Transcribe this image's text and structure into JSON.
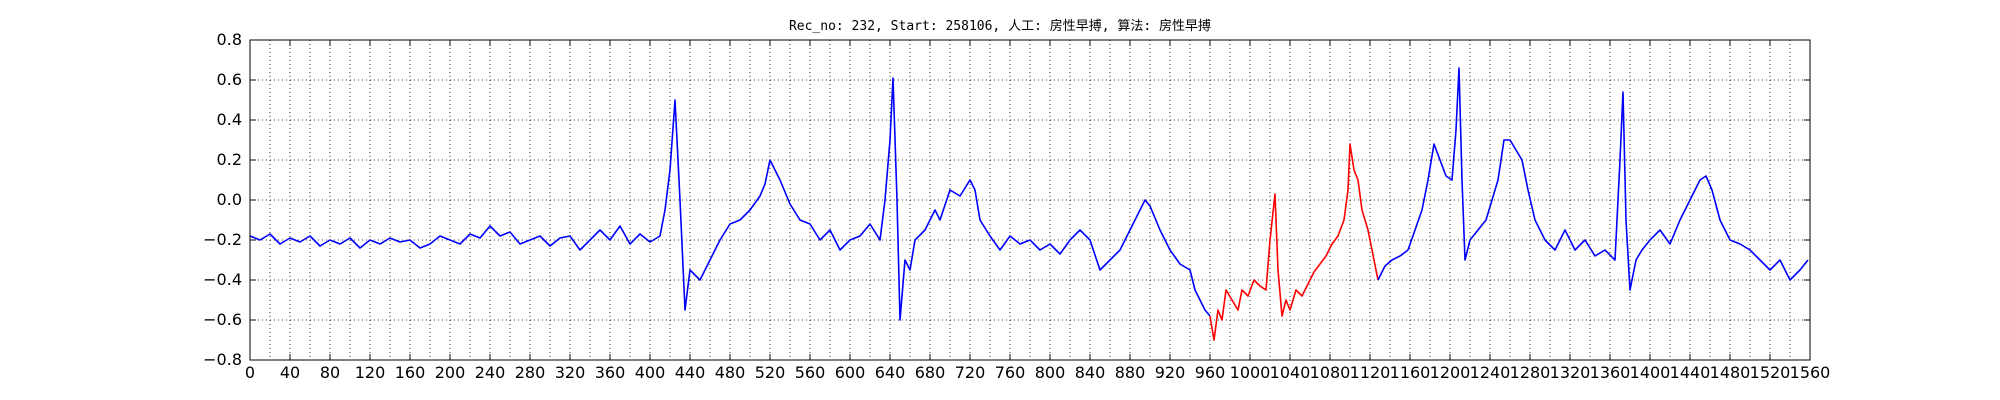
{
  "chart_data": {
    "type": "line",
    "title": "Rec_no: 232, Start: 258106, 人工: 房性早搏, 算法: 房性早搏",
    "xlabel": "",
    "ylabel": "",
    "xlim": [
      0,
      1560
    ],
    "ylim": [
      -0.8,
      0.8
    ],
    "grid": true,
    "x_ticks": [
      0,
      40,
      80,
      120,
      160,
      200,
      240,
      280,
      320,
      360,
      400,
      440,
      480,
      520,
      560,
      600,
      640,
      680,
      720,
      760,
      800,
      840,
      880,
      920,
      960,
      1000,
      1040,
      1080,
      1120,
      1160,
      1200,
      1240,
      1280,
      1320,
      1360,
      1400,
      1440,
      1480,
      1520,
      1560
    ],
    "x_tick_labels": [
      "0",
      "40",
      "80",
      "120",
      "160",
      "200",
      "240",
      "280",
      "320",
      "360",
      "400",
      "440",
      "480",
      "520",
      "560",
      "600",
      "640",
      "680",
      "720",
      "760",
      "800",
      "840",
      "880",
      "920",
      "960",
      "1000",
      "1040",
      "1080",
      "1120",
      "1160",
      "1200",
      "1240",
      "1280",
      "1320",
      "1360",
      "1400",
      "1440",
      "1480",
      "1520",
      "1560"
    ],
    "x_minor_step": 20,
    "y_ticks": [
      -0.8,
      -0.6,
      -0.4,
      -0.2,
      0.0,
      0.2,
      0.4,
      0.6,
      0.8
    ],
    "y_tick_labels": [
      "−0.8",
      "−0.6",
      "−0.4",
      "−0.2",
      "0.0",
      "0.2",
      "0.4",
      "0.6",
      "0.8"
    ],
    "series": [
      {
        "color": "#0000ff",
        "points": [
          [
            0,
            -0.18
          ],
          [
            10,
            -0.2
          ],
          [
            20,
            -0.17
          ],
          [
            30,
            -0.22
          ],
          [
            40,
            -0.19
          ],
          [
            50,
            -0.21
          ],
          [
            60,
            -0.18
          ],
          [
            70,
            -0.23
          ],
          [
            80,
            -0.2
          ],
          [
            90,
            -0.22
          ],
          [
            100,
            -0.19
          ],
          [
            110,
            -0.24
          ],
          [
            120,
            -0.2
          ],
          [
            130,
            -0.22
          ],
          [
            140,
            -0.19
          ],
          [
            150,
            -0.21
          ],
          [
            160,
            -0.2
          ],
          [
            170,
            -0.24
          ],
          [
            180,
            -0.22
          ],
          [
            190,
            -0.18
          ],
          [
            200,
            -0.2
          ],
          [
            210,
            -0.22
          ],
          [
            220,
            -0.17
          ],
          [
            230,
            -0.19
          ],
          [
            240,
            -0.13
          ],
          [
            250,
            -0.18
          ],
          [
            260,
            -0.16
          ],
          [
            270,
            -0.22
          ],
          [
            280,
            -0.2
          ],
          [
            290,
            -0.18
          ],
          [
            300,
            -0.23
          ],
          [
            310,
            -0.19
          ],
          [
            320,
            -0.18
          ],
          [
            330,
            -0.25
          ],
          [
            340,
            -0.2
          ],
          [
            350,
            -0.15
          ],
          [
            360,
            -0.2
          ],
          [
            370,
            -0.13
          ],
          [
            380,
            -0.22
          ],
          [
            390,
            -0.17
          ],
          [
            400,
            -0.21
          ],
          [
            410,
            -0.18
          ],
          [
            415,
            -0.05
          ],
          [
            420,
            0.15
          ],
          [
            425,
            0.5
          ],
          [
            430,
            0.0
          ],
          [
            435,
            -0.55
          ],
          [
            440,
            -0.35
          ],
          [
            450,
            -0.4
          ],
          [
            460,
            -0.3
          ],
          [
            470,
            -0.2
          ],
          [
            480,
            -0.12
          ],
          [
            490,
            -0.1
          ],
          [
            500,
            -0.05
          ],
          [
            510,
            0.02
          ],
          [
            515,
            0.08
          ],
          [
            520,
            0.2
          ],
          [
            525,
            0.15
          ],
          [
            530,
            0.1
          ],
          [
            540,
            -0.02
          ],
          [
            550,
            -0.1
          ],
          [
            560,
            -0.12
          ],
          [
            570,
            -0.2
          ],
          [
            580,
            -0.15
          ],
          [
            590,
            -0.25
          ],
          [
            600,
            -0.2
          ],
          [
            610,
            -0.18
          ],
          [
            620,
            -0.12
          ],
          [
            630,
            -0.2
          ],
          [
            635,
            0.0
          ],
          [
            640,
            0.3
          ],
          [
            643,
            0.61
          ],
          [
            647,
            0.0
          ],
          [
            650,
            -0.6
          ],
          [
            655,
            -0.3
          ],
          [
            660,
            -0.35
          ],
          [
            665,
            -0.2
          ],
          [
            675,
            -0.15
          ],
          [
            685,
            -0.05
          ],
          [
            690,
            -0.1
          ],
          [
            700,
            0.05
          ],
          [
            710,
            0.02
          ],
          [
            720,
            0.1
          ],
          [
            725,
            0.05
          ],
          [
            730,
            -0.1
          ],
          [
            740,
            -0.18
          ],
          [
            750,
            -0.25
          ],
          [
            760,
            -0.18
          ],
          [
            770,
            -0.22
          ],
          [
            780,
            -0.2
          ],
          [
            790,
            -0.25
          ],
          [
            800,
            -0.22
          ],
          [
            810,
            -0.27
          ],
          [
            820,
            -0.2
          ],
          [
            830,
            -0.15
          ],
          [
            840,
            -0.2
          ],
          [
            850,
            -0.35
          ],
          [
            860,
            -0.3
          ],
          [
            870,
            -0.25
          ],
          [
            880,
            -0.15
          ],
          [
            890,
            -0.05
          ],
          [
            895,
            0.0
          ],
          [
            900,
            -0.03
          ],
          [
            910,
            -0.15
          ],
          [
            920,
            -0.25
          ],
          [
            930,
            -0.32
          ],
          [
            940,
            -0.35
          ],
          [
            945,
            -0.45
          ],
          [
            955,
            -0.55
          ],
          [
            960,
            -0.58
          ]
        ]
      },
      {
        "color": "#ff0000",
        "points": [
          [
            960,
            -0.58
          ],
          [
            964,
            -0.7
          ],
          [
            968,
            -0.55
          ],
          [
            972,
            -0.6
          ],
          [
            976,
            -0.45
          ],
          [
            982,
            -0.5
          ],
          [
            988,
            -0.55
          ],
          [
            992,
            -0.45
          ],
          [
            998,
            -0.48
          ],
          [
            1004,
            -0.4
          ],
          [
            1010,
            -0.43
          ],
          [
            1016,
            -0.45
          ],
          [
            1020,
            -0.2
          ],
          [
            1025,
            0.03
          ],
          [
            1028,
            -0.35
          ],
          [
            1032,
            -0.58
          ],
          [
            1036,
            -0.5
          ],
          [
            1040,
            -0.55
          ],
          [
            1046,
            -0.45
          ],
          [
            1052,
            -0.48
          ],
          [
            1058,
            -0.42
          ],
          [
            1064,
            -0.36
          ],
          [
            1070,
            -0.32
          ],
          [
            1076,
            -0.28
          ],
          [
            1082,
            -0.22
          ],
          [
            1088,
            -0.18
          ],
          [
            1094,
            -0.1
          ],
          [
            1098,
            0.05
          ],
          [
            1100,
            0.28
          ],
          [
            1104,
            0.15
          ],
          [
            1108,
            0.1
          ],
          [
            1112,
            -0.05
          ],
          [
            1118,
            -0.15
          ],
          [
            1124,
            -0.3
          ],
          [
            1128,
            -0.4
          ]
        ]
      },
      {
        "color": "#0000ff",
        "points": [
          [
            1128,
            -0.4
          ],
          [
            1135,
            -0.33
          ],
          [
            1142,
            -0.3
          ],
          [
            1150,
            -0.28
          ],
          [
            1158,
            -0.25
          ],
          [
            1165,
            -0.15
          ],
          [
            1172,
            -0.05
          ],
          [
            1178,
            0.1
          ],
          [
            1184,
            0.28
          ],
          [
            1190,
            0.2
          ],
          [
            1196,
            0.12
          ],
          [
            1202,
            0.1
          ],
          [
            1206,
            0.35
          ],
          [
            1209,
            0.66
          ],
          [
            1212,
            0.1
          ],
          [
            1215,
            -0.3
          ],
          [
            1220,
            -0.2
          ],
          [
            1228,
            -0.15
          ],
          [
            1236,
            -0.1
          ],
          [
            1242,
            0.0
          ],
          [
            1248,
            0.1
          ],
          [
            1254,
            0.3
          ],
          [
            1260,
            0.3
          ],
          [
            1266,
            0.25
          ],
          [
            1272,
            0.2
          ],
          [
            1278,
            0.05
          ],
          [
            1285,
            -0.1
          ],
          [
            1295,
            -0.2
          ],
          [
            1305,
            -0.25
          ],
          [
            1315,
            -0.15
          ],
          [
            1325,
            -0.25
          ],
          [
            1335,
            -0.2
          ],
          [
            1345,
            -0.28
          ],
          [
            1355,
            -0.25
          ],
          [
            1365,
            -0.3
          ],
          [
            1370,
            0.2
          ],
          [
            1373,
            0.54
          ],
          [
            1376,
            -0.1
          ],
          [
            1380,
            -0.45
          ],
          [
            1386,
            -0.3
          ],
          [
            1392,
            -0.25
          ],
          [
            1400,
            -0.2
          ],
          [
            1410,
            -0.15
          ],
          [
            1420,
            -0.22
          ],
          [
            1430,
            -0.1
          ],
          [
            1440,
            0.0
          ],
          [
            1450,
            0.1
          ],
          [
            1456,
            0.12
          ],
          [
            1462,
            0.05
          ],
          [
            1470,
            -0.1
          ],
          [
            1480,
            -0.2
          ],
          [
            1490,
            -0.22
          ],
          [
            1500,
            -0.25
          ],
          [
            1510,
            -0.3
          ],
          [
            1520,
            -0.35
          ],
          [
            1530,
            -0.3
          ],
          [
            1540,
            -0.4
          ],
          [
            1550,
            -0.35
          ],
          [
            1558,
            -0.3
          ]
        ]
      }
    ]
  }
}
